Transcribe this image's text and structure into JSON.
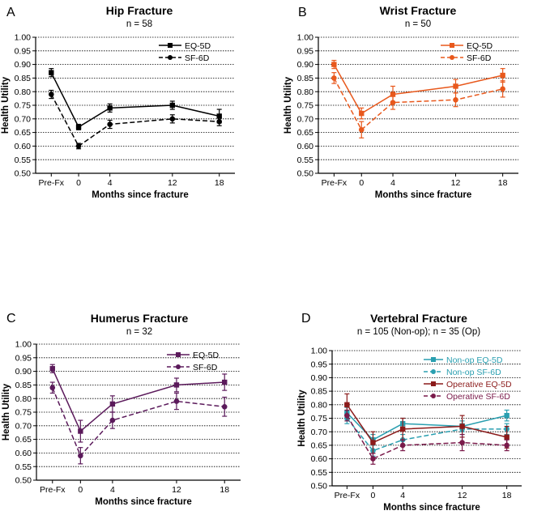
{
  "chart_data": [
    {
      "type": "line",
      "panel": "A",
      "title": "Hip Fracture",
      "subtitle": "n = 58",
      "xlabel": "Months since fracture",
      "ylabel": "Health Utility",
      "x": [
        -3.5,
        0,
        4,
        12,
        18
      ],
      "x_tick_labels": [
        "Pre-Fx",
        "0",
        "4",
        "12",
        "18"
      ],
      "ylim": [
        0.5,
        1.0
      ],
      "y_ticks": [
        "0.50",
        "0.55",
        "0.60",
        "0.65",
        "0.70",
        "0.75",
        "0.80",
        "0.85",
        "0.90",
        "0.95",
        "1.00"
      ],
      "legend_position": "top-right",
      "series": [
        {
          "name": "EQ-5D",
          "color": "#000000",
          "dash": "solid",
          "marker": "square",
          "values": [
            0.87,
            0.67,
            0.74,
            0.75,
            0.71
          ],
          "errors": [
            0.015,
            0.01,
            0.015,
            0.015,
            0.025
          ]
        },
        {
          "name": "SF-6D",
          "color": "#000000",
          "dash": "dashed",
          "marker": "circle",
          "values": [
            0.79,
            0.6,
            0.68,
            0.7,
            0.69
          ],
          "errors": [
            0.015,
            0.01,
            0.015,
            0.015,
            0.015
          ]
        }
      ]
    },
    {
      "type": "line",
      "panel": "B",
      "title": "Wrist Fracture",
      "subtitle": "n = 50",
      "xlabel": "Months since fracture",
      "ylabel": "Health Utility",
      "x": [
        -3.5,
        0,
        4,
        12,
        18
      ],
      "x_tick_labels": [
        "Pre-Fx",
        "0",
        "4",
        "12",
        "18"
      ],
      "ylim": [
        0.5,
        1.0
      ],
      "y_ticks": [
        "0.50",
        "0.55",
        "0.60",
        "0.65",
        "0.70",
        "0.75",
        "0.80",
        "0.85",
        "0.90",
        "0.95",
        "1.00"
      ],
      "legend_position": "top-right",
      "series": [
        {
          "name": "EQ-5D",
          "color": "#e8581c",
          "dash": "solid",
          "marker": "square",
          "values": [
            0.9,
            0.72,
            0.79,
            0.82,
            0.86
          ],
          "errors": [
            0.015,
            0.02,
            0.03,
            0.025,
            0.025
          ]
        },
        {
          "name": "SF-6D",
          "color": "#e8581c",
          "dash": "dashed",
          "marker": "circle",
          "values": [
            0.85,
            0.66,
            0.76,
            0.77,
            0.81
          ],
          "errors": [
            0.02,
            0.03,
            0.025,
            0.025,
            0.03
          ]
        }
      ]
    },
    {
      "type": "line",
      "panel": "C",
      "title": "Humerus Fracture",
      "subtitle": "n = 32",
      "xlabel": "Months since fracture",
      "ylabel": "Health Utility",
      "x": [
        -3.5,
        0,
        4,
        12,
        18
      ],
      "x_tick_labels": [
        "Pre-Fx",
        "0",
        "4",
        "12",
        "18"
      ],
      "ylim": [
        0.5,
        1.0
      ],
      "y_ticks": [
        "0.50",
        "0.55",
        "0.60",
        "0.65",
        "0.70",
        "0.75",
        "0.80",
        "0.85",
        "0.90",
        "0.95",
        "1.00"
      ],
      "legend_position": "top-right",
      "series": [
        {
          "name": "EQ-5D",
          "color": "#5b1a5b",
          "dash": "solid",
          "marker": "square",
          "values": [
            0.91,
            0.68,
            0.78,
            0.85,
            0.86
          ],
          "errors": [
            0.015,
            0.04,
            0.03,
            0.025,
            0.03
          ]
        },
        {
          "name": "SF-6D",
          "color": "#5b1a5b",
          "dash": "dashed",
          "marker": "circle",
          "values": [
            0.84,
            0.59,
            0.72,
            0.79,
            0.77
          ],
          "errors": [
            0.02,
            0.03,
            0.03,
            0.03,
            0.035
          ]
        }
      ]
    },
    {
      "type": "line",
      "panel": "D",
      "title": "Vertebral Fracture",
      "subtitle": "n = 105 (Non-op); n = 35 (Op)",
      "xlabel": "Months since fracture",
      "ylabel": "Health Utility",
      "x": [
        -3.5,
        0,
        4,
        12,
        18
      ],
      "x_tick_labels": [
        "Pre-Fx",
        "0",
        "4",
        "12",
        "18"
      ],
      "ylim": [
        0.5,
        1.0
      ],
      "y_ticks": [
        "0.50",
        "0.55",
        "0.60",
        "0.65",
        "0.70",
        "0.75",
        "0.80",
        "0.85",
        "0.90",
        "0.95",
        "1.00"
      ],
      "legend_position": "top-right",
      "series": [
        {
          "name": "Non-op EQ-5D",
          "color": "#2a9fb0",
          "dash": "solid",
          "marker": "square",
          "values": [
            0.77,
            0.67,
            0.73,
            0.72,
            0.76
          ],
          "errors": [
            0.02,
            0.02,
            0.02,
            0.02,
            0.02
          ]
        },
        {
          "name": "Non-op SF-6D",
          "color": "#2a9fb0",
          "dash": "dashed",
          "marker": "circle",
          "values": [
            0.75,
            0.63,
            0.67,
            0.71,
            0.71
          ],
          "errors": [
            0.02,
            0.02,
            0.02,
            0.02,
            0.02
          ]
        },
        {
          "name": "Operative EQ-5D",
          "color": "#8b1a1a",
          "dash": "solid",
          "marker": "square",
          "values": [
            0.8,
            0.66,
            0.71,
            0.72,
            0.68
          ],
          "errors": [
            0.04,
            0.04,
            0.04,
            0.04,
            0.04
          ]
        },
        {
          "name": "Operative SF-6D",
          "color": "#7a1a4a",
          "dash": "dashed",
          "marker": "circle",
          "values": [
            0.76,
            0.6,
            0.65,
            0.66,
            0.65
          ],
          "errors": [
            0.02,
            0.02,
            0.02,
            0.03,
            0.02
          ]
        }
      ]
    }
  ]
}
